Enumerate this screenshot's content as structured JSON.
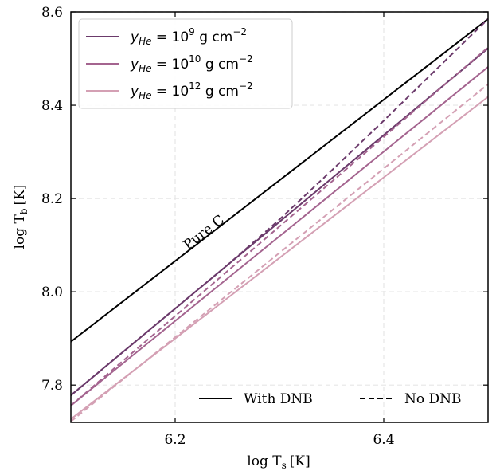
{
  "chart_data": {
    "type": "line",
    "xlabel": "log T",
    "xlabel_sub": "s",
    "xlabel_unit": "[K]",
    "ylabel": "log T",
    "ylabel_sub": "b",
    "ylabel_unit": "[K]",
    "xlim": [
      6.1,
      6.5
    ],
    "ylim": [
      7.72,
      8.6
    ],
    "xticks": [
      6.2,
      6.4
    ],
    "xtick_labels": [
      "6.2",
      "6.4"
    ],
    "yticks": [
      7.8,
      8.0,
      8.2,
      8.4,
      8.6
    ],
    "ytick_labels": [
      "7.8",
      "8.0",
      "8.2",
      "8.4",
      "8.6"
    ],
    "grid": true,
    "annotation": {
      "text": "Pure C",
      "x": 6.23,
      "y": 8.12
    },
    "series": [
      {
        "key": "pureC",
        "color": "#000000",
        "style": "solid",
        "x": [
          6.1,
          6.5
        ],
        "y": [
          7.893,
          8.585
        ]
      },
      {
        "key": "y9_dnb",
        "color": "#6b3a6b",
        "style": "solid",
        "x": [
          6.1,
          6.5
        ],
        "y": [
          7.778,
          8.522
        ]
      },
      {
        "key": "y9_nodnb",
        "color": "#6b3a6b",
        "style": "dashed",
        "x": [
          6.1,
          6.2,
          6.25,
          6.3,
          6.35,
          6.4,
          6.45,
          6.5
        ],
        "y": [
          7.778,
          7.964,
          8.057,
          8.155,
          8.26,
          8.367,
          8.476,
          8.585
        ]
      },
      {
        "key": "y10_dnb",
        "color": "#a4648f",
        "style": "solid",
        "x": [
          6.1,
          6.5
        ],
        "y": [
          7.756,
          8.482
        ]
      },
      {
        "key": "y10_nodnb",
        "color": "#a4648f",
        "style": "dashed",
        "x": [
          6.1,
          6.5
        ],
        "y": [
          7.756,
          8.524
        ]
      },
      {
        "key": "y12_dnb",
        "color": "#d4a0b4",
        "style": "solid",
        "x": [
          6.1,
          6.5
        ],
        "y": [
          7.727,
          8.418
        ]
      },
      {
        "key": "y12_nodnb",
        "color": "#d4a0b4",
        "style": "dashed",
        "x": [
          6.1,
          6.5
        ],
        "y": [
          7.722,
          8.445
        ]
      }
    ],
    "legend_top": {
      "placement": "top-left",
      "entries": [
        {
          "color": "#6b3a6b",
          "prefix": "y",
          "sub": "He",
          "mid": " = 10",
          "exp": "9",
          "tail": " g cm",
          "tailexp": "−2"
        },
        {
          "color": "#a4648f",
          "prefix": "y",
          "sub": "He",
          "mid": " = 10",
          "exp": "10",
          "tail": " g cm",
          "tailexp": "−2"
        },
        {
          "color": "#d4a0b4",
          "prefix": "y",
          "sub": "He",
          "mid": " = 10",
          "exp": "12",
          "tail": " g cm",
          "tailexp": "−2"
        }
      ]
    },
    "legend_bottom": {
      "placement": "bottom-right",
      "entries": [
        {
          "label": "With DNB",
          "style": "solid"
        },
        {
          "label": "No DNB",
          "style": "dashed"
        }
      ]
    }
  }
}
